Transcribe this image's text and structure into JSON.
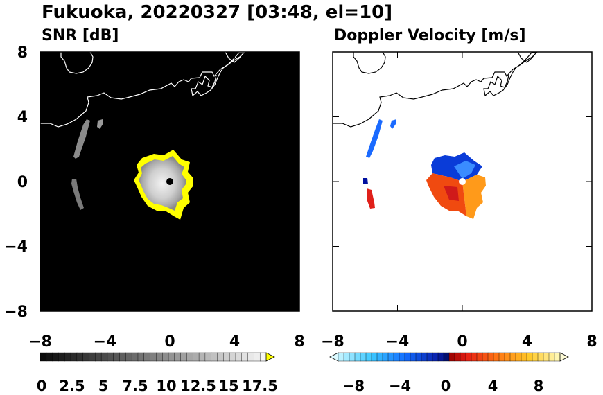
{
  "title": "Fukuoka, 20220327 [03:48, el=10]",
  "colors": {
    "snr_background": "#000000",
    "snr_echo": "#c8c8c8",
    "snr_saturated": "#ffff00",
    "coastline": "#000000",
    "vel_negative": "#0050ff",
    "vel_positive": "#ff5000"
  },
  "chart_data": [
    {
      "type": "heatmap",
      "panel": "snr",
      "title": "SNR [dB]",
      "xlim": [
        -8,
        8
      ],
      "ylim": [
        -8,
        8
      ],
      "xticks": [
        "−8",
        "−4",
        "0",
        "4",
        "8"
      ],
      "yticks": [
        "8",
        "4",
        "0",
        "−4",
        "−8"
      ],
      "colorbar": {
        "range": [
          0,
          18.5
        ],
        "extend": "max",
        "ticks": [
          "0",
          "2.5",
          "5",
          "7.5",
          "10",
          "12.5",
          "15",
          "17.5"
        ]
      }
    },
    {
      "type": "heatmap",
      "panel": "velocity",
      "title": "Doppler Velocity [m/s]",
      "xlim": [
        -8,
        8
      ],
      "ylim": [
        -8,
        8
      ],
      "xticks": [
        "−8",
        "−4",
        "0",
        "4",
        "8"
      ],
      "colorbar": {
        "range": [
          -10,
          10
        ],
        "extend": "both",
        "ticks": [
          "−8",
          "−4",
          "0",
          "4",
          "8"
        ]
      }
    }
  ]
}
